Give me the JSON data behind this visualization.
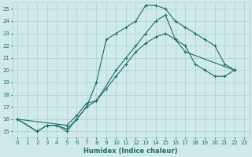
{
  "xlabel": "Humidex (Indice chaleur)",
  "xlim": [
    -0.5,
    23.5
  ],
  "ylim": [
    14.5,
    25.5
  ],
  "xticks": [
    0,
    1,
    2,
    3,
    4,
    5,
    6,
    7,
    8,
    9,
    10,
    11,
    12,
    13,
    14,
    15,
    16,
    17,
    18,
    19,
    20,
    21,
    22,
    23
  ],
  "yticks": [
    15,
    16,
    17,
    18,
    19,
    20,
    21,
    22,
    23,
    24,
    25
  ],
  "background_color": "#d0eaea",
  "grid_color": "#b0d4d4",
  "line_color": "#1e6b6b",
  "line1_x": [
    0,
    2,
    3,
    4,
    5,
    6,
    7,
    8,
    9,
    10,
    11,
    12,
    13,
    14,
    15,
    16,
    17,
    18,
    19,
    20,
    21,
    22
  ],
  "line1_y": [
    16,
    15,
    15.5,
    15.5,
    15,
    16,
    17,
    19,
    22.5,
    23,
    23.5,
    24,
    25.3,
    25.3,
    25,
    24,
    23.5,
    23,
    22.5,
    22,
    20.5,
    20
  ],
  "line2_x": [
    0,
    2,
    3,
    4,
    5,
    6,
    7,
    8,
    10,
    11,
    12,
    13,
    14,
    15,
    16,
    17,
    22
  ],
  "line2_y": [
    16,
    15,
    15.5,
    15.5,
    15.2,
    16,
    17,
    17.5,
    20,
    21,
    22,
    23,
    24,
    24.5,
    22.5,
    21.5,
    20
  ],
  "line3_x": [
    0,
    5,
    6,
    7,
    8,
    9,
    10,
    11,
    12,
    13,
    14,
    15,
    16,
    17,
    18,
    19,
    20,
    21,
    22
  ],
  "line3_y": [
    16,
    15.5,
    16.3,
    17.3,
    17.5,
    18.5,
    19.5,
    20.5,
    21.5,
    22.2,
    22.7,
    23,
    22.5,
    22,
    20.5,
    20,
    19.5,
    19.5,
    20
  ]
}
